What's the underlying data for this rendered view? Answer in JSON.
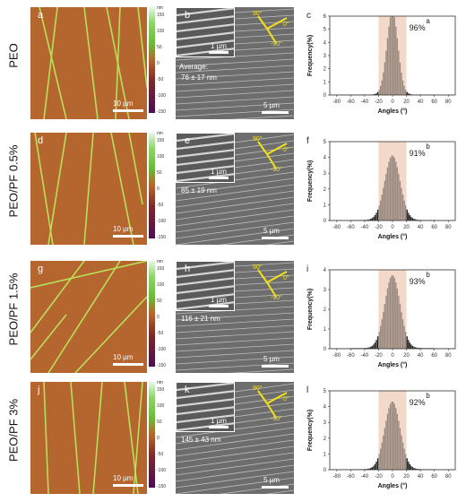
{
  "rows": [
    {
      "row_label": "PEO",
      "afm_letter": "a",
      "sem_letter": "b",
      "hist_letter": "c",
      "afm_scale": "10 µm",
      "inset_scale": "1 µm",
      "sem_scale": "5 µm",
      "sem_avg_line1": "Average:",
      "sem_avg_line2": "76 ± 17 nm",
      "percent": "96%",
      "sig": "a"
    },
    {
      "row_label": "PEO/PF 0.5%",
      "afm_letter": "d",
      "sem_letter": "e",
      "hist_letter": "f",
      "afm_scale": "10 µm",
      "inset_scale": "1 µm",
      "sem_scale": "5 µm",
      "sem_avg_line1": "",
      "sem_avg_line2": "85 ± 19 nm",
      "percent": "91%",
      "sig": "b"
    },
    {
      "row_label": "PEO/PF 1.5%",
      "afm_letter": "g",
      "sem_letter": "h",
      "hist_letter": "i",
      "afm_scale": "10 µm",
      "inset_scale": "1 µm",
      "sem_scale": "5 µm",
      "sem_avg_line1": "",
      "sem_avg_line2": "116 ± 21 nm",
      "percent": "93%",
      "sig": "b"
    },
    {
      "row_label": "PEO/PF 3%",
      "afm_letter": "j",
      "sem_letter": "k",
      "hist_letter": "l",
      "afm_scale": "10 µm",
      "inset_scale": "1 µm",
      "sem_scale": "5 µm",
      "sem_avg_line1": "",
      "sem_avg_line2": "145 ± 43 nm",
      "percent": "92%",
      "sig": "b"
    }
  ],
  "colorbar": {
    "unit": "nm",
    "ticks": [
      "150",
      "100",
      "50",
      "0",
      "-50",
      "-100",
      "-150"
    ]
  },
  "axis_labels": {
    "deg90": "90°",
    "deg0": "0°",
    "deg_90": "-90°"
  },
  "chart_data": [
    {
      "type": "bar",
      "xlabel": "Angles (°)",
      "ylabel": "Frequency(%)",
      "xlim": [
        -90,
        90
      ],
      "ylim": [
        0,
        6
      ],
      "xticks": [
        -80,
        -60,
        -40,
        -20,
        0,
        20,
        40,
        60,
        80
      ],
      "yticks": [
        0,
        1,
        2,
        3,
        4,
        5,
        6
      ],
      "peak": 6.3,
      "shaded_range": [
        -20,
        20
      ],
      "percent_label": "96%"
    },
    {
      "type": "bar",
      "xlabel": "Angles (°)",
      "ylabel": "Frequency(%)",
      "xlim": [
        -90,
        90
      ],
      "ylim": [
        0,
        5
      ],
      "xticks": [
        -80,
        -60,
        -40,
        -20,
        0,
        20,
        40,
        60,
        80
      ],
      "yticks": [
        0,
        1,
        2,
        3,
        4,
        5
      ],
      "peak": 4.1,
      "shaded_range": [
        -20,
        20
      ],
      "percent_label": "91%"
    },
    {
      "type": "bar",
      "xlabel": "Angles (°)",
      "ylabel": "Frequency(%)",
      "xlim": [
        -90,
        90
      ],
      "ylim": [
        0,
        4
      ],
      "xticks": [
        -80,
        -60,
        -40,
        -20,
        0,
        20,
        40,
        60,
        80
      ],
      "yticks": [
        0,
        1,
        2,
        3,
        4
      ],
      "peak": 3.7,
      "shaded_range": [
        -20,
        20
      ],
      "percent_label": "93%"
    },
    {
      "type": "bar",
      "xlabel": "Angles (°)",
      "ylabel": "Frequency(%)",
      "xlim": [
        -90,
        90
      ],
      "ylim": [
        0,
        5
      ],
      "xticks": [
        -80,
        -60,
        -40,
        -20,
        0,
        20,
        40,
        60,
        80
      ],
      "yticks": [
        0,
        1,
        2,
        3,
        4,
        5
      ],
      "peak": 4.3,
      "shaded_range": [
        -20,
        20
      ],
      "percent_label": "92%"
    }
  ]
}
